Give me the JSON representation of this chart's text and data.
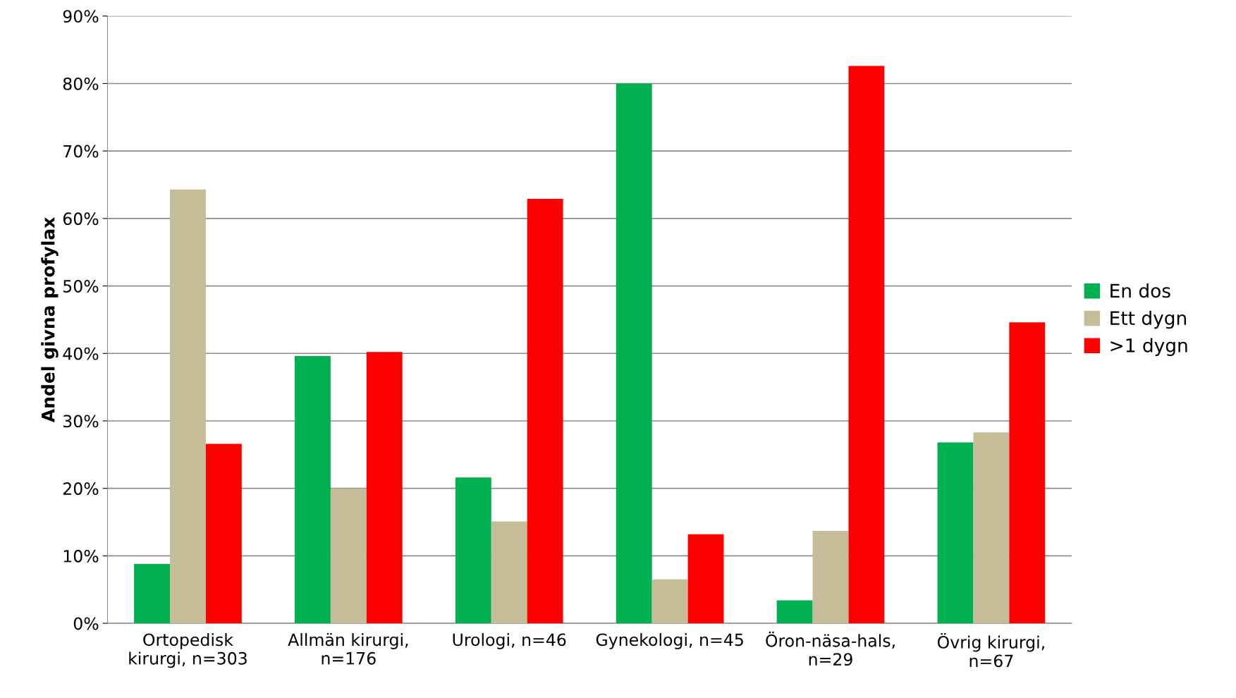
{
  "chart_data": {
    "type": "bar",
    "ylabel": "Andel givna profylax",
    "categories": [
      "Ortopedisk\nkirurgi, n=303",
      "Allmän kirurgi,\nn=176",
      "Urologi, n=46",
      "Gynekologi, n=45",
      "Öron-näsa-hals,\nn=29",
      "Övrig kirurgi,\nn=67"
    ],
    "series": [
      {
        "name": "En dos",
        "color": "#00b050",
        "values": [
          8.8,
          39.6,
          21.6,
          80,
          3.4,
          26.8
        ]
      },
      {
        "name": "Ett dygn",
        "color": "#c4bd97",
        "values": [
          64.3,
          20.0,
          15.1,
          6.5,
          13.7,
          28.3
        ]
      },
      {
        "name": ">1 dygn",
        "color": "#ff0000",
        "values": [
          26.6,
          40.2,
          62.9,
          13.2,
          82.6,
          44.6
        ]
      }
    ],
    "ylim": [
      0,
      90
    ],
    "yticks": [
      {
        "value": 0,
        "label": "0%"
      },
      {
        "value": 10,
        "label": "10%"
      },
      {
        "value": 20,
        "label": "20%"
      },
      {
        "value": 30,
        "label": "30%"
      },
      {
        "value": 40,
        "label": "40%"
      },
      {
        "value": 50,
        "label": "50%"
      },
      {
        "value": 60,
        "label": "60%"
      },
      {
        "value": 70,
        "label": "70%"
      },
      {
        "value": 80,
        "label": "80%"
      },
      {
        "value": 90,
        "label": "90%"
      }
    ],
    "grid": "y",
    "legend": "right"
  }
}
